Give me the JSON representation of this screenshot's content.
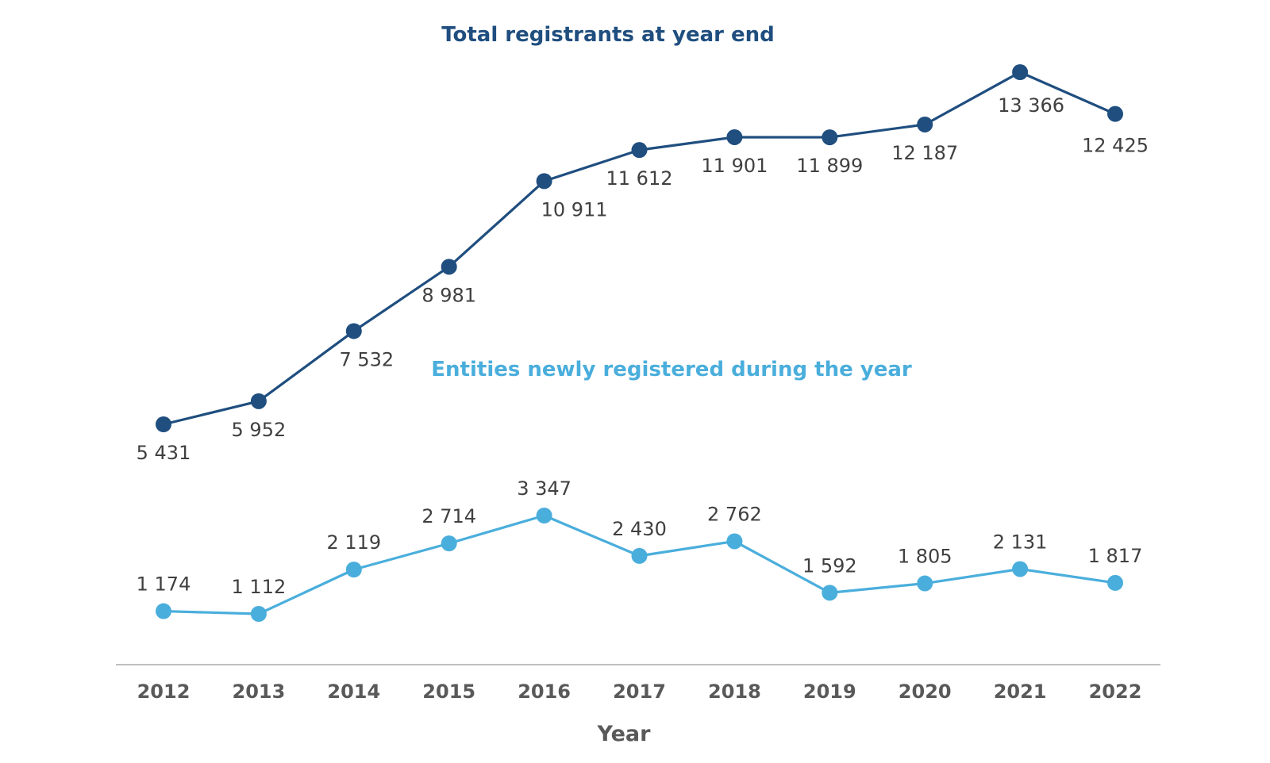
{
  "chart_data": {
    "type": "line",
    "xlabel": "Year",
    "ylabel": "",
    "categories": [
      "2012",
      "2013",
      "2014",
      "2015",
      "2016",
      "2017",
      "2018",
      "2019",
      "2020",
      "2021",
      "2022"
    ],
    "grid": false,
    "series": [
      {
        "name": "Total registrants at year end",
        "color": "#1f4e7f",
        "values": [
          5431,
          5952,
          7532,
          8981,
          10911,
          11612,
          11901,
          11899,
          12187,
          13366,
          12425
        ],
        "labels": [
          "5 431",
          "5 952",
          "7 532",
          "8 981",
          "10 911",
          "11 612",
          "11 901",
          "11 899",
          "12 187",
          "13 366",
          "12 425"
        ]
      },
      {
        "name": "Entities newly registered during the year",
        "color": "#4aaedc",
        "values": [
          1174,
          1112,
          2119,
          2714,
          3347,
          2430,
          2762,
          1592,
          1805,
          2131,
          1817
        ],
        "labels": [
          "1 174",
          "1 112",
          "2 119",
          "2 714",
          "3 347",
          "2 430",
          "2 762",
          "1 592",
          "1 805",
          "2 131",
          "1 817"
        ]
      }
    ]
  }
}
